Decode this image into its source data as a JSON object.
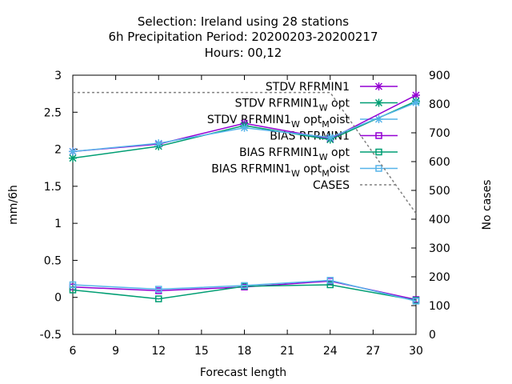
{
  "chart_data": {
    "type": "line",
    "title_lines": [
      "Selection: Ireland using    28 stations",
      "6h Precipitation   Period: 20200203-20200217",
      "Hours:  00,12"
    ],
    "xlabel": "Forecast length",
    "ylabel": "mm/6h",
    "y2label": "No cases",
    "xlim": [
      6,
      30
    ],
    "ylim": [
      -0.5,
      3
    ],
    "y2lim": [
      0,
      900
    ],
    "xticks": [
      "6",
      "9",
      "12",
      "15",
      "18",
      "21",
      "24",
      "27",
      "30"
    ],
    "yticks": [
      "-0.5",
      "0",
      "0.5",
      "1",
      "1.5",
      "2",
      "2.5",
      "3"
    ],
    "y2ticks": [
      "0",
      "100",
      "200",
      "300",
      "400",
      "500",
      "600",
      "700",
      "800",
      "900"
    ],
    "grid": false,
    "legend_position": "top-right",
    "x": [
      6,
      12,
      18,
      24,
      30
    ],
    "series": [
      {
        "legend": [
          "STDV RFRMIN1",
          "",
          "",
          ""
        ],
        "color": "#9400d3",
        "marker": "x",
        "axis": "y1",
        "values": [
          1.97,
          2.07,
          2.35,
          2.14,
          2.73
        ]
      },
      {
        "legend": [
          "STDV RFRMIN1",
          "W",
          " opt",
          ""
        ],
        "color": "#009e73",
        "marker": "x",
        "axis": "y1",
        "values": [
          1.88,
          2.04,
          2.32,
          2.13,
          2.65
        ]
      },
      {
        "legend": [
          "STDV RFRMIN1",
          "W",
          " opt",
          "M",
          "oist"
        ],
        "color": "#56b4e9",
        "marker": "x",
        "axis": "y1",
        "values": [
          1.97,
          2.08,
          2.29,
          2.16,
          2.63
        ]
      },
      {
        "legend": [
          "BIAS RFRMIN1",
          "",
          "",
          ""
        ],
        "color": "#9400d3",
        "marker": "square",
        "axis": "y1",
        "values": [
          0.14,
          0.09,
          0.14,
          0.22,
          -0.03
        ]
      },
      {
        "legend": [
          "BIAS RFRMIN1",
          "W",
          " opt",
          ""
        ],
        "color": "#009e73",
        "marker": "square",
        "axis": "y1",
        "values": [
          0.1,
          -0.02,
          0.15,
          0.17,
          -0.04
        ]
      },
      {
        "legend": [
          "BIAS RFRMIN1",
          "W",
          " opt",
          "M",
          "oist"
        ],
        "color": "#56b4e9",
        "marker": "square",
        "axis": "y1",
        "values": [
          0.17,
          0.11,
          0.16,
          0.23,
          -0.05
        ]
      },
      {
        "legend": [
          "CASES",
          "",
          "",
          ""
        ],
        "color": "#808080",
        "marker": "none",
        "dashed": true,
        "axis": "y2",
        "values": [
          840,
          840,
          840,
          840,
          420
        ]
      }
    ]
  }
}
